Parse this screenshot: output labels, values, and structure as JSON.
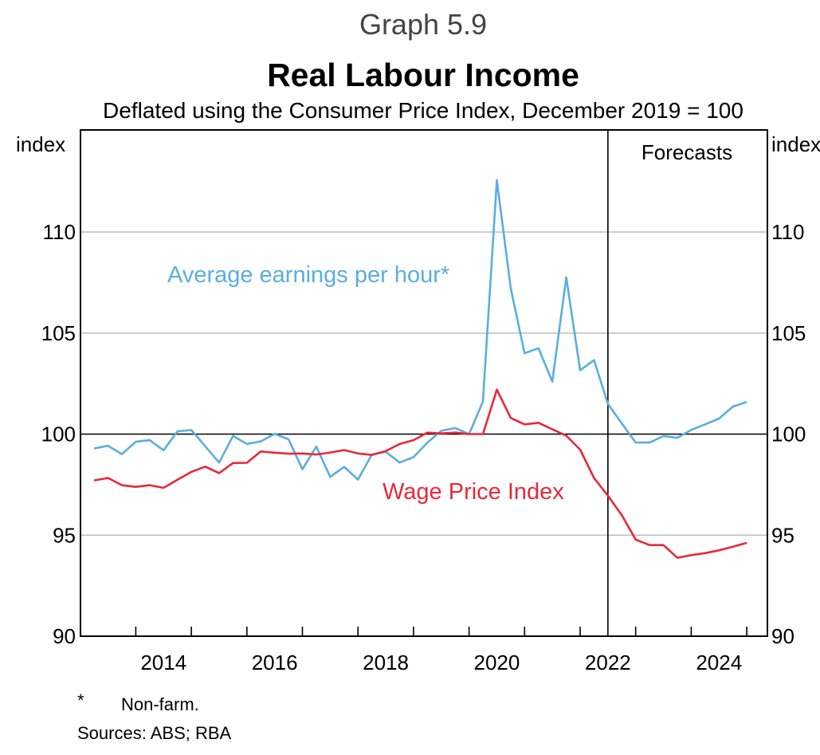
{
  "chart_data": {
    "type": "line",
    "graph_number": "Graph 5.9",
    "title": "Real Labour Income",
    "subtitle": "Deflated using the Consumer Price Index, December 2019 = 100",
    "ylabel_left": "index",
    "ylabel_right": "index",
    "ylim": [
      90,
      113.5
    ],
    "yticks": [
      90,
      95,
      100,
      105,
      110
    ],
    "reference_line": 100,
    "xlim": [
      2013,
      2025.4
    ],
    "xtick_labels": [
      "2014",
      "2016",
      "2018",
      "2020",
      "2022",
      "2024"
    ],
    "forecast_start": 2022.5,
    "forecast_label": "Forecasts",
    "x_start": "Mar 2013",
    "frequency": "quarterly",
    "series": [
      {
        "name": "Average earnings per hour*",
        "color": "#5aaede",
        "values": [
          99.29,
          99.42,
          99.01,
          99.62,
          99.7,
          99.2,
          100.14,
          100.2,
          99.4,
          98.59,
          99.91,
          99.51,
          99.64,
          100.01,
          99.74,
          98.26,
          99.38,
          97.88,
          98.38,
          97.75,
          98.99,
          99.12,
          98.59,
          98.86,
          99.58,
          100.16,
          100.3,
          100.0,
          101.61,
          112.57,
          107.22,
          104.0,
          104.25,
          102.6,
          107.75,
          103.16,
          103.66,
          101.49,
          100.53,
          99.58,
          99.58,
          99.9,
          99.82,
          100.21,
          100.48,
          100.77,
          101.36,
          101.59
        ]
      },
      {
        "name": "Wage Price Index",
        "color": "#e8283a",
        "values": [
          97.71,
          97.83,
          97.47,
          97.39,
          97.47,
          97.34,
          97.74,
          98.13,
          98.39,
          98.07,
          98.57,
          98.58,
          99.14,
          99.08,
          99.03,
          99.04,
          98.99,
          99.09,
          99.21,
          99.04,
          98.97,
          99.16,
          99.51,
          99.7,
          100.07,
          100.03,
          100.08,
          100.0,
          100.0,
          102.2,
          100.8,
          100.48,
          100.56,
          100.24,
          99.92,
          99.23,
          97.83,
          96.95,
          95.99,
          94.78,
          94.51,
          94.51,
          93.88,
          94.01,
          94.11,
          94.25,
          94.43,
          94.62
        ]
      }
    ]
  },
  "footnotes": {
    "marker": "*",
    "note": "Non-farm.",
    "sources": "Sources: ABS; RBA"
  }
}
